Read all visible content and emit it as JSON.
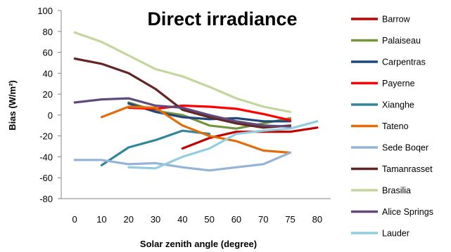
{
  "chart_data": {
    "type": "line",
    "title": "Direct irradiance",
    "xlabel": "Solar zenith angle (degree)",
    "ylabel": "Bias (W/m²)",
    "xlim": [
      0,
      80
    ],
    "ylim": [
      -80,
      100
    ],
    "x_ticks": [
      "0",
      "10",
      "20",
      "30",
      "40",
      "50",
      "60",
      "70",
      "75",
      "80"
    ],
    "y_ticks": [
      "100",
      "80",
      "60",
      "40",
      "20",
      "0",
      "-20",
      "-40",
      "-60",
      "-80"
    ],
    "grid": false,
    "legend_position": "right",
    "series": [
      {
        "name": "Barrow",
        "color": "#c00000",
        "x": [
          40,
          50,
          60,
          70,
          75,
          80
        ],
        "y": [
          -32,
          -22,
          -16,
          -16,
          -16,
          -12
        ]
      },
      {
        "name": "Palaiseau",
        "color": "#77933c",
        "x": [
          20,
          30,
          40,
          50,
          60,
          70,
          75
        ],
        "y": [
          12,
          4,
          0,
          -10,
          -13,
          -8,
          -3
        ]
      },
      {
        "name": "Carpentras",
        "color": "#1f497d",
        "x": [
          20,
          30,
          40,
          50,
          60,
          70,
          75
        ],
        "y": [
          11,
          3,
          -2,
          -4,
          -3,
          -6,
          -6
        ]
      },
      {
        "name": "Payerne",
        "color": "#ff0000",
        "x": [
          20,
          30,
          40,
          50,
          60,
          70,
          75
        ],
        "y": [
          7,
          6,
          9,
          8,
          6,
          1,
          -5
        ]
      },
      {
        "name": "Xianghe",
        "color": "#31859c",
        "x": [
          10,
          20,
          30,
          40,
          50
        ],
        "y": [
          -48,
          -31,
          -24,
          -15,
          -18
        ]
      },
      {
        "name": "Tateno",
        "color": "#e46c0a",
        "x": [
          10,
          20,
          30,
          40,
          50,
          60,
          70,
          75
        ],
        "y": [
          -2,
          8,
          7,
          -10,
          -20,
          -25,
          -34,
          -36
        ]
      },
      {
        "name": "Sede Boqer",
        "color": "#95b3d7",
        "x": [
          0,
          10,
          20,
          30,
          40,
          50,
          60,
          70,
          75
        ],
        "y": [
          -43,
          -43,
          -47,
          -46,
          -50,
          -53,
          -50,
          -47,
          -36
        ]
      },
      {
        "name": "Tamanrasset",
        "color": "#632523",
        "x": [
          0,
          10,
          20,
          30,
          40,
          50,
          60,
          70,
          75
        ],
        "y": [
          54,
          49,
          40,
          25,
          5,
          -2,
          -8,
          -12,
          -10
        ]
      },
      {
        "name": "Brasilia",
        "color": "#c3d69b",
        "x": [
          0,
          10,
          20,
          30,
          40,
          50,
          60,
          70,
          75
        ],
        "y": [
          79,
          70,
          57,
          44,
          37,
          27,
          16,
          8,
          3
        ]
      },
      {
        "name": "Alice Springs",
        "color": "#604a7b",
        "x": [
          0,
          10,
          20,
          30,
          40,
          50,
          60,
          70,
          75
        ],
        "y": [
          12,
          15,
          16,
          9,
          7,
          0,
          -6,
          -10,
          -11
        ]
      },
      {
        "name": "Lauder",
        "color": "#93cddd",
        "x": [
          20,
          30,
          40,
          50,
          60,
          70,
          75,
          80
        ],
        "y": [
          -50,
          -51,
          -40,
          -32,
          -18,
          -15,
          -13,
          -6
        ]
      }
    ]
  }
}
